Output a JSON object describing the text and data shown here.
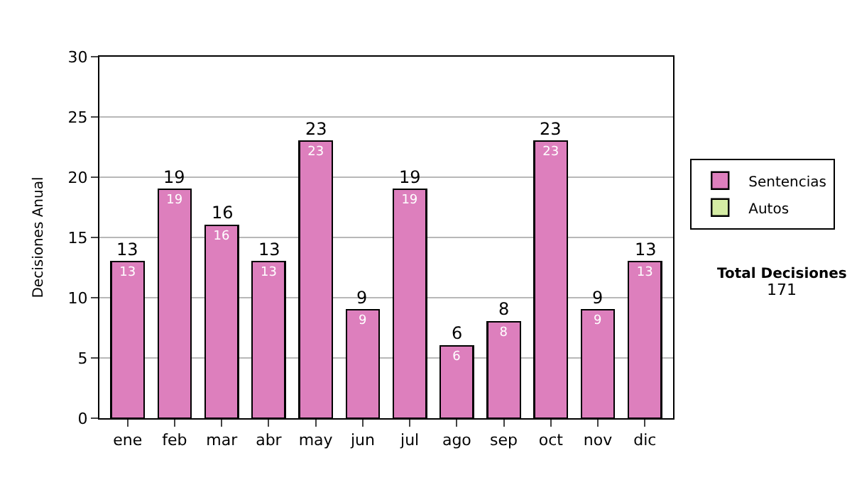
{
  "chart_data": {
    "type": "bar",
    "ylabel": "Decisiones Anual",
    "categories": [
      "ene",
      "feb",
      "mar",
      "abr",
      "may",
      "jun",
      "jul",
      "ago",
      "sep",
      "oct",
      "nov",
      "dic"
    ],
    "stacked": true,
    "series": [
      {
        "name": "Sentencias",
        "color": "#dd7fbd",
        "values": [
          13,
          19,
          16,
          13,
          23,
          9,
          19,
          6,
          8,
          23,
          9,
          13
        ]
      },
      {
        "name": "Autos",
        "color": "#d5eca4",
        "values": [
          null,
          null,
          null,
          null,
          null,
          null,
          null,
          null,
          null,
          null,
          null,
          null
        ]
      }
    ],
    "data_labels": true,
    "totals": [
      "13",
      "19",
      "16",
      "13",
      "23",
      "9",
      "19",
      "6",
      "8",
      "23",
      "9",
      "13"
    ],
    "ylim": [
      0,
      30
    ],
    "yticks": [
      0,
      5,
      10,
      15,
      20,
      25,
      30
    ],
    "grid": "y",
    "legend": "right",
    "annotations": [
      "Total Decisiones",
      "171"
    ]
  }
}
